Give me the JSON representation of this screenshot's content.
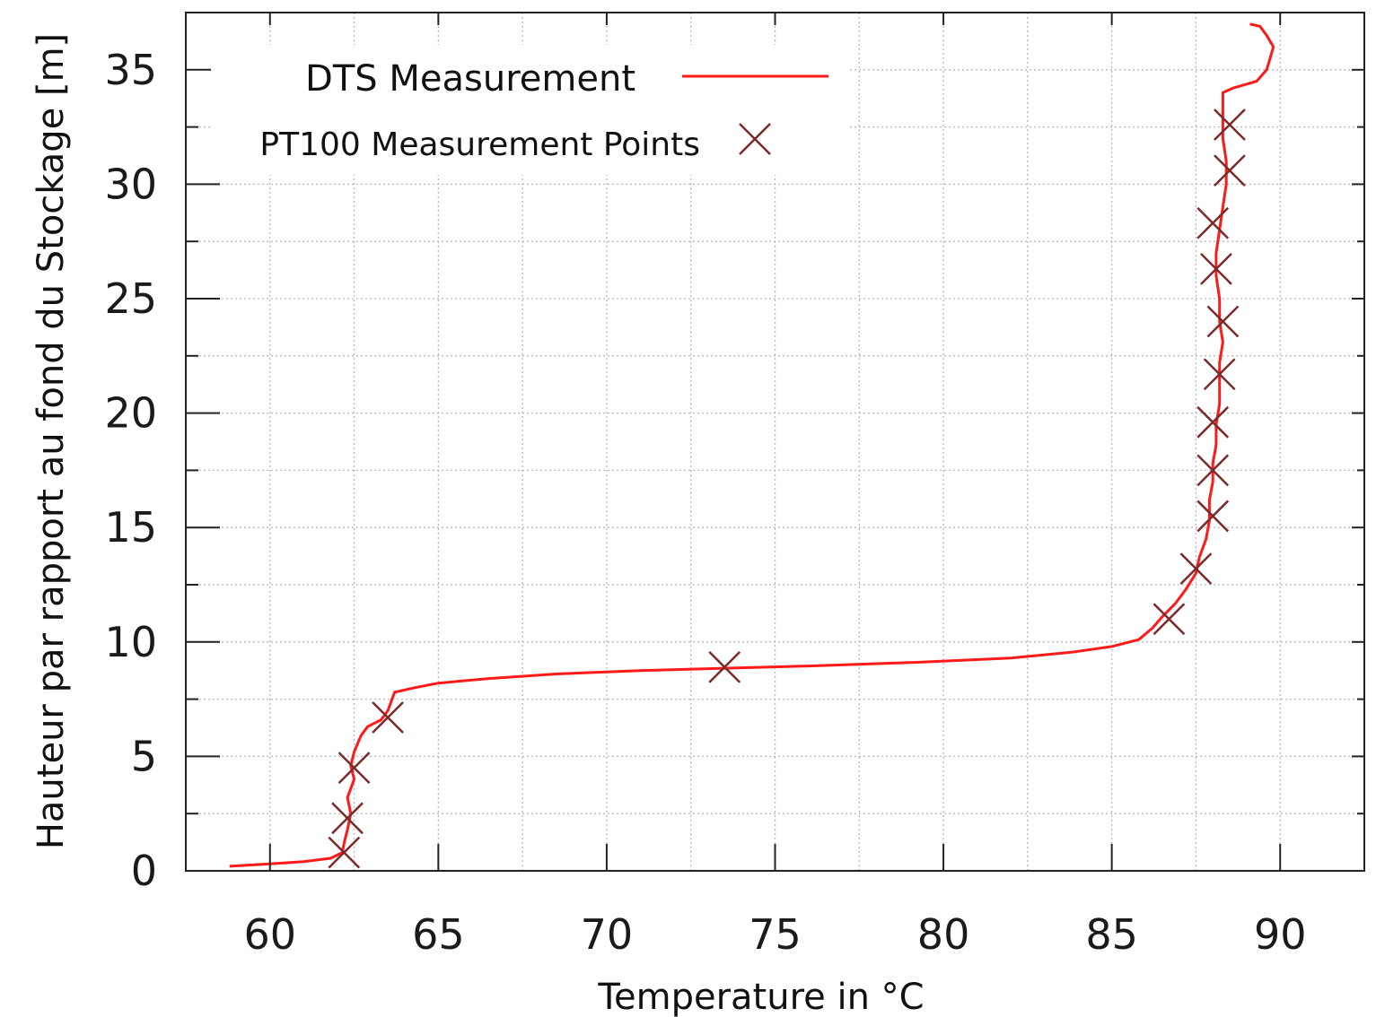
{
  "chart_data": {
    "type": "line",
    "xlabel": "Temperature in °C",
    "ylabel": "Hauteur  par rapport au fond du Stockage [m]",
    "xlim": [
      57.5,
      92.5
    ],
    "ylim": [
      0,
      37.5
    ],
    "x_ticks": [
      "60",
      "65",
      "70",
      "75",
      "80",
      "85",
      "90"
    ],
    "y_ticks": [
      "0",
      "5",
      "10",
      "15",
      "20",
      "25",
      "30",
      "35"
    ],
    "grid": true,
    "legend_position": "top-left",
    "colors": {
      "dts": "#ff1a1a",
      "pt100": "#7a2a2a",
      "grid": "#b8b8b8"
    },
    "series": [
      {
        "name": "DTS Measurement",
        "style": "line",
        "points": [
          [
            58.8,
            0.2
          ],
          [
            60.0,
            0.3
          ],
          [
            61.0,
            0.4
          ],
          [
            61.8,
            0.55
          ],
          [
            62.15,
            0.8
          ],
          [
            62.2,
            1.2
          ],
          [
            62.3,
            1.8
          ],
          [
            62.4,
            2.5
          ],
          [
            62.3,
            3.2
          ],
          [
            62.5,
            4.0
          ],
          [
            62.4,
            4.6
          ],
          [
            62.5,
            5.2
          ],
          [
            62.7,
            5.9
          ],
          [
            62.9,
            6.3
          ],
          [
            63.3,
            6.6
          ],
          [
            63.5,
            7.0
          ],
          [
            63.6,
            7.4
          ],
          [
            63.7,
            7.8
          ],
          [
            64.3,
            8.0
          ],
          [
            65.0,
            8.2
          ],
          [
            66.5,
            8.4
          ],
          [
            68.5,
            8.6
          ],
          [
            71.0,
            8.75
          ],
          [
            73.5,
            8.85
          ],
          [
            76.0,
            8.95
          ],
          [
            79.0,
            9.1
          ],
          [
            82.0,
            9.3
          ],
          [
            83.8,
            9.55
          ],
          [
            85.0,
            9.8
          ],
          [
            85.8,
            10.1
          ],
          [
            86.2,
            10.6
          ],
          [
            86.5,
            11.1
          ],
          [
            86.9,
            11.7
          ],
          [
            87.2,
            12.3
          ],
          [
            87.5,
            13.0
          ],
          [
            87.6,
            13.7
          ],
          [
            87.8,
            14.5
          ],
          [
            87.9,
            15.3
          ],
          [
            87.9,
            16.2
          ],
          [
            88.0,
            17.0
          ],
          [
            88.0,
            17.8
          ],
          [
            88.1,
            18.6
          ],
          [
            88.1,
            19.5
          ],
          [
            88.2,
            20.4
          ],
          [
            88.2,
            21.3
          ],
          [
            88.2,
            22.2
          ],
          [
            88.3,
            23.1
          ],
          [
            88.2,
            24.0
          ],
          [
            88.2,
            25.0
          ],
          [
            88.1,
            26.0
          ],
          [
            88.1,
            27.0
          ],
          [
            88.2,
            28.0
          ],
          [
            88.3,
            29.0
          ],
          [
            88.4,
            30.0
          ],
          [
            88.4,
            31.0
          ],
          [
            88.3,
            32.0
          ],
          [
            88.3,
            33.0
          ],
          [
            88.3,
            34.0
          ],
          [
            88.6,
            34.2
          ],
          [
            89.3,
            34.5
          ],
          [
            89.6,
            35.0
          ],
          [
            89.7,
            35.5
          ],
          [
            89.8,
            36.0
          ],
          [
            89.6,
            36.5
          ],
          [
            89.4,
            36.9
          ],
          [
            89.1,
            37.0
          ]
        ]
      },
      {
        "name": "PT100 Measurement Points",
        "style": "marker-x",
        "points": [
          [
            62.2,
            0.8
          ],
          [
            62.3,
            2.3
          ],
          [
            62.5,
            4.5
          ],
          [
            63.5,
            6.7
          ],
          [
            73.5,
            8.9
          ],
          [
            86.7,
            11.0
          ],
          [
            87.5,
            13.2
          ],
          [
            88.0,
            15.5
          ],
          [
            88.0,
            17.5
          ],
          [
            88.0,
            19.6
          ],
          [
            88.2,
            21.7
          ],
          [
            88.3,
            24.0
          ],
          [
            88.1,
            26.3
          ],
          [
            88.0,
            28.3
          ],
          [
            88.5,
            30.6
          ],
          [
            88.5,
            32.6
          ]
        ]
      }
    ]
  }
}
